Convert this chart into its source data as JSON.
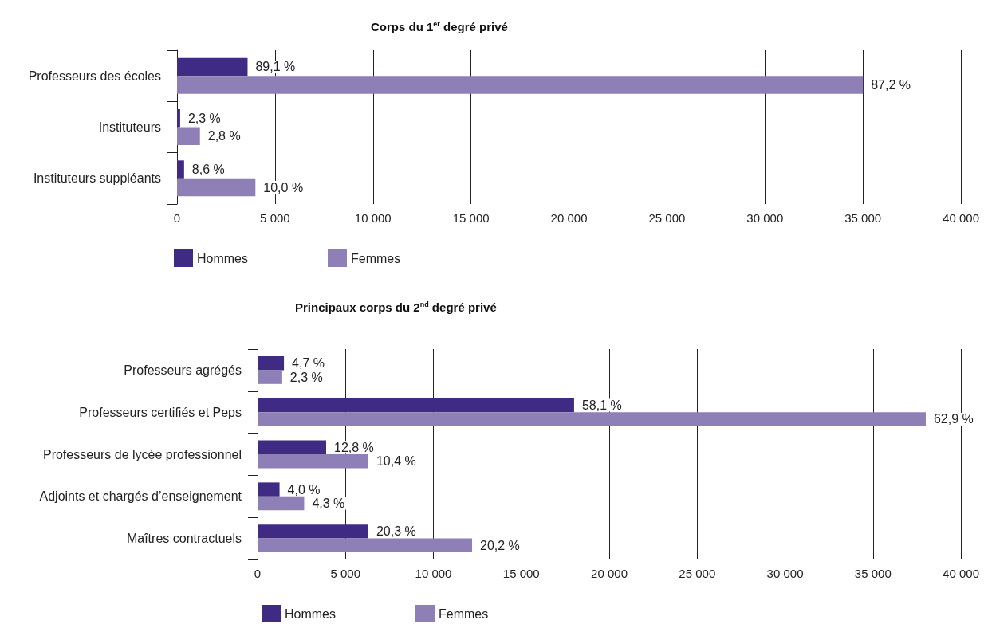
{
  "chart_data": [
    {
      "type": "bar",
      "orientation": "horizontal",
      "title": "Corps du 1$^{er}$ degré privé",
      "categories": [
        "Professeurs des écoles",
        "Instituteurs",
        "Instituteurs suppléants"
      ],
      "series": [
        {
          "name": "Hommes",
          "color": "#3f2a84",
          "values": [
            3600,
            160,
            360
          ]
        },
        {
          "name": "Femmes",
          "color": "#8e80b6",
          "values": [
            35000,
            1170,
            4000
          ]
        }
      ],
      "annotations": [
        {
          "text": "89,1 %",
          "x": 3600,
          "y": "Professeurs des écoles"
        },
        {
          "text": "2,3 %",
          "x": 160,
          "y": "Instituteurs"
        },
        {
          "text": "8,6 %",
          "x": 360,
          "y": "Instituteurs suppléants"
        },
        {
          "text": "87,2 %",
          "x": 35000,
          "y": "Professeurs des écoles"
        },
        {
          "text": "2,8 %",
          "x": 1170,
          "y": "Instituteurs"
        },
        {
          "text": "10,0 %",
          "x": 4000,
          "y": "Instituteurs suppléants"
        }
      ],
      "xlim": [
        0,
        40000
      ],
      "xticks": [
        0,
        {
          "value": 5000,
          "label": "5 000"
        },
        {
          "value": 10000,
          "label": "10 000"
        },
        {
          "value": 15000,
          "label": "15 000"
        },
        {
          "value": 20000,
          "label": "20 000"
        },
        {
          "value": 25000,
          "label": "25 000"
        },
        {
          "value": 30000,
          "label": "30 000"
        },
        {
          "value": 35000,
          "label": "35 000"
        },
        {
          "value": 40000,
          "label": "40 000"
        }
      ],
      "grid": "x",
      "legend": "bottom left"
    },
    {
      "type": "bar",
      "orientation": "horizontal",
      "title": "Principaux corps du 2$^{nd}$ degré privé",
      "categories": [
        "Professeurs agrégés",
        "Professeurs certifiés et Peps",
        "Professeurs de lycée professionnel",
        "Adjoints et chargés d’enseignement",
        "Maîtres contractuels"
      ],
      "series": [
        {
          "name": "Hommes",
          "color": "#3f2a84",
          "values": [
            1500,
            18000,
            3900,
            1250,
            6300
          ]
        },
        {
          "name": "Femmes",
          "color": "#8e80b6",
          "values": [
            1400,
            38000,
            6300,
            2650,
            12200
          ]
        }
      ],
      "annotations": [
        {
          "text": "4,7 %",
          "x": 1500,
          "y": "Professeurs agrégés"
        },
        {
          "text": "58,1 %",
          "x": 18000,
          "y": "Professeurs certifiés et Peps"
        },
        {
          "text": "12,8 %",
          "x": 3900,
          "y": "Professeurs de lycée professionnel"
        },
        {
          "text": "4,0 %",
          "x": 1250,
          "y": "Adjoints et chargés d’enseignement"
        },
        {
          "text": "20,3 %",
          "x": 6300,
          "y": "Maîtres contractuels"
        },
        {
          "text": "2,3 %",
          "x": 1400,
          "y": "Professeurs agrégés"
        },
        {
          "text": "62,9 %",
          "x": 38000,
          "y": "Professeurs certifiés et Peps"
        },
        {
          "text": "10,4 %",
          "x": 6300,
          "y": "Professeurs de lycée professionnel"
        },
        {
          "text": "4,3 %",
          "x": 2650,
          "y": "Adjoints et chargés d’enseignement"
        },
        {
          "text": "20,2 %",
          "x": 12200,
          "y": "Maîtres contractuels"
        }
      ],
      "xlim": [
        0,
        40000
      ],
      "xticks": [
        0,
        {
          "value": 5000,
          "label": "5 000"
        },
        {
          "value": 10000,
          "label": "10 000"
        },
        {
          "value": 15000,
          "label": "15 000"
        },
        {
          "value": 20000,
          "label": "20 000"
        },
        {
          "value": 25000,
          "label": "25 000"
        },
        {
          "value": 30000,
          "label": "30 000"
        },
        {
          "value": 35000,
          "label": "35 000"
        },
        {
          "value": 40000,
          "label": "40 000"
        }
      ],
      "grid": "x",
      "legend": "bottom left"
    }
  ]
}
